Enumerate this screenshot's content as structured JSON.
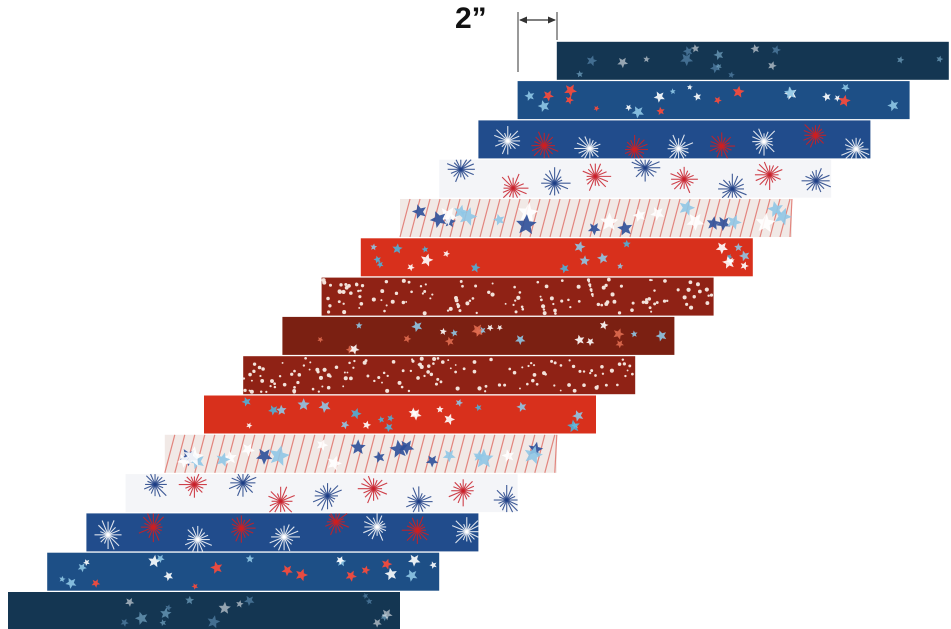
{
  "dimension": {
    "label": "2”"
  },
  "strips": [
    {
      "fabric": "navy-tonal-stars",
      "base": "#143652",
      "accent": "#6a9cc4"
    },
    {
      "fabric": "blue-scattered-stars",
      "base": "#1d4f86",
      "accent": "#ff4a3a"
    },
    {
      "fabric": "red-blue-fireworks",
      "base": "#214c8c",
      "accent": "#d41e1e"
    },
    {
      "fabric": "white-fireworks",
      "base": "#f4f5f8",
      "accent": "#c8202b"
    },
    {
      "fabric": "white-stripe-stars",
      "base": "#f1e9e6",
      "accent": "#2c4f99"
    },
    {
      "fabric": "red-stars",
      "base": "#d8301c",
      "accent": "#4fb0d8"
    },
    {
      "fabric": "dark-red-dots",
      "base": "#8f2215",
      "accent": "#f3e2da"
    },
    {
      "fabric": "dark-red-stars",
      "base": "#7b2012",
      "accent": "#e06b50"
    },
    {
      "fabric": "dark-red-dots",
      "base": "#8f2215",
      "accent": "#f3e2da"
    },
    {
      "fabric": "red-stars",
      "base": "#d8301c",
      "accent": "#4fb0d8"
    },
    {
      "fabric": "white-stripe-stars",
      "base": "#f1e9e6",
      "accent": "#2c4f99"
    },
    {
      "fabric": "white-fireworks",
      "base": "#f4f5f8",
      "accent": "#c8202b"
    },
    {
      "fabric": "red-blue-fireworks",
      "base": "#214c8c",
      "accent": "#d41e1e"
    },
    {
      "fabric": "blue-scattered-stars",
      "base": "#1d4f86",
      "accent": "#ff4a3a"
    },
    {
      "fabric": "navy-tonal-stars",
      "base": "#143652",
      "accent": "#6a9cc4"
    }
  ]
}
